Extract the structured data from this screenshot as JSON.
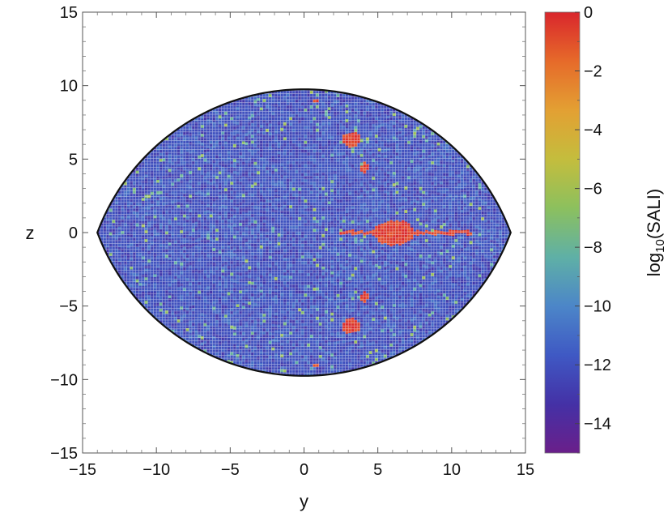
{
  "chart_data": {
    "type": "heatmap",
    "title": "",
    "xlabel": "y",
    "ylabel": "z",
    "xlim": [
      -15,
      15
    ],
    "ylim": [
      -15,
      15
    ],
    "x_ticks": [
      -15,
      -10,
      -5,
      0,
      5,
      10,
      15
    ],
    "y_ticks": [
      -15,
      -10,
      -5,
      0,
      5,
      10,
      15
    ],
    "x_tick_labels": [
      "−15",
      "−10",
      "−5",
      "0",
      "5",
      "10",
      "15"
    ],
    "y_tick_labels": [
      "−15",
      "−10",
      "−5",
      "0",
      "5",
      "10",
      "15"
    ],
    "grid": false,
    "region": {
      "shape": "lens",
      "y_extent": [
        -14,
        14
      ],
      "z_extent": [
        -9.75,
        9.75
      ]
    },
    "background_value": -12,
    "chaotic_value": 0,
    "colorbar": {
      "label_prefix": "log",
      "label_sub": "10",
      "label_suffix": "(SALI)",
      "range": [
        -15,
        0
      ],
      "ticks": [
        0,
        -2,
        -4,
        -6,
        -8,
        -10,
        -12,
        -14
      ],
      "tick_labels": [
        "0",
        "−2",
        "−4",
        "−6",
        "−8",
        "−10",
        "−12",
        "−14"
      ],
      "colors": [
        "#6a1f8a",
        "#4431a6",
        "#3f59c4",
        "#4c86c8",
        "#5fb0a6",
        "#8cc05e",
        "#c4bd3d",
        "#e3a033",
        "#e66a2a",
        "#d9262c"
      ]
    },
    "chaotic_features": [
      {
        "kind": "band",
        "y": [
          2.3,
          11.3
        ],
        "z": [
          0,
          0
        ]
      },
      {
        "kind": "blob",
        "y": [
          4.8,
          7.4
        ],
        "z": [
          -0.8,
          0.8
        ]
      },
      {
        "kind": "blob",
        "y": [
          2.6,
          3.8
        ],
        "z": [
          5.9,
          6.8
        ]
      },
      {
        "kind": "blob",
        "y": [
          2.6,
          3.8
        ],
        "z": [
          -6.8,
          -5.9
        ]
      },
      {
        "kind": "blob",
        "y": [
          0.6,
          1.0
        ],
        "z": [
          8.9,
          9.1
        ]
      },
      {
        "kind": "blob",
        "y": [
          0.6,
          1.0
        ],
        "z": [
          -9.1,
          -8.9
        ]
      },
      {
        "kind": "blob",
        "y": [
          3.9,
          4.3
        ],
        "z": [
          4.1,
          4.7
        ]
      },
      {
        "kind": "blob",
        "y": [
          3.9,
          4.3
        ],
        "z": [
          -4.7,
          -4.1
        ]
      }
    ]
  }
}
